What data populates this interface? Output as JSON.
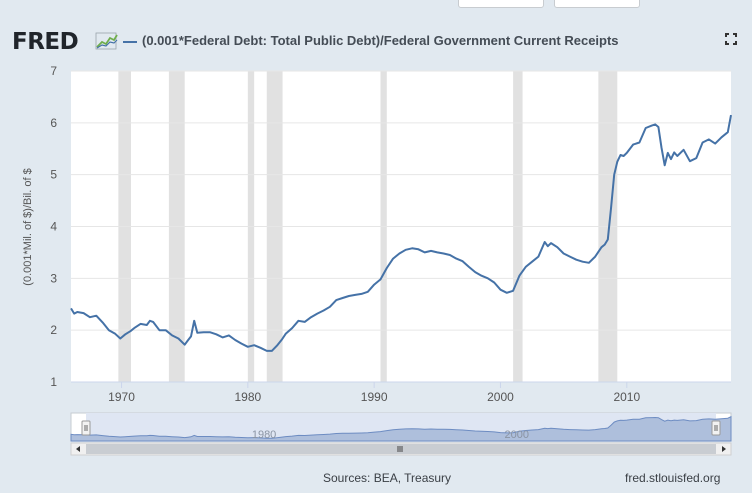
{
  "header": {
    "logo_text": "FRED",
    "series_title": "(0.001*Federal Debt: Total Public Debt)/Federal Government Current Receipts"
  },
  "footer": {
    "sources": "Sources: BEA, Treasury",
    "link": "fred.stlouisfed.org"
  },
  "icons": {
    "logo_spark": "chart-spark-icon",
    "fullscreen": "fullscreen-icon",
    "scroll_left": "arrow-left-icon",
    "scroll_right": "arrow-right-icon",
    "scroll_grip": "grip-icon"
  },
  "colors": {
    "series_line": "#4572a7",
    "recession": "#e1e1e1",
    "background": "#e1e9f0",
    "navigator_fill": "#aebfdc"
  },
  "navigator": {
    "labels": [
      "1980",
      "2000"
    ]
  },
  "chart_data": {
    "type": "line",
    "title": "(0.001*Federal Debt: Total Public Debt)/Federal Government Current Receipts",
    "ylabel": "(0.001*Mil. of $)/Bil. of $",
    "xlabel": "",
    "xlim": [
      1966.0,
      2018.25
    ],
    "ylim": [
      1,
      7
    ],
    "xticks": [
      1970,
      1980,
      1990,
      2000,
      2010
    ],
    "yticks": [
      1,
      2,
      3,
      4,
      5,
      6,
      7
    ],
    "grid": "horizontal",
    "legend": "top-left",
    "recessions": [
      [
        1969.75,
        1970.75
      ],
      [
        1973.75,
        1975.0
      ],
      [
        1980.0,
        1980.5
      ],
      [
        1981.5,
        1982.75
      ],
      [
        1990.5,
        1991.0
      ],
      [
        2001.0,
        2001.75
      ],
      [
        2007.75,
        2009.25
      ]
    ],
    "series": [
      {
        "x": [
          1966.0,
          1966.25,
          1966.5,
          1967.0,
          1967.5,
          1968.0,
          1968.5,
          1969.0,
          1969.5,
          1969.9,
          1970.3,
          1970.7,
          1971.0,
          1971.5,
          1972.0,
          1972.25,
          1972.5,
          1973.0,
          1973.5,
          1974.0,
          1974.5,
          1975.0,
          1975.25,
          1975.5,
          1975.75,
          1976.0,
          1976.5,
          1977.0,
          1977.5,
          1978.0,
          1978.5,
          1979.0,
          1979.5,
          1980.0,
          1980.5,
          1981.0,
          1981.5,
          1981.9,
          1982.3,
          1982.7,
          1983.0,
          1983.5,
          1984.0,
          1984.5,
          1985.0,
          1985.5,
          1986.0,
          1986.5,
          1987.0,
          1987.5,
          1988.0,
          1988.5,
          1989.0,
          1989.5,
          1990.0,
          1990.5,
          1991.0,
          1991.5,
          1992.0,
          1992.5,
          1993.0,
          1993.5,
          1994.0,
          1994.5,
          1995.0,
          1995.5,
          1996.0,
          1996.5,
          1997.0,
          1997.5,
          1998.0,
          1998.5,
          1999.0,
          1999.5,
          2000.0,
          2000.5,
          2001.0,
          2001.5,
          2002.0,
          2002.5,
          2003.0,
          2003.5,
          2003.75,
          2004.0,
          2004.5,
          2005.0,
          2005.5,
          2006.0,
          2006.5,
          2007.0,
          2007.5,
          2008.0,
          2008.25,
          2008.5,
          2008.75,
          2009.0,
          2009.25,
          2009.5,
          2009.75,
          2010.0,
          2010.5,
          2011.0,
          2011.5,
          2012.0,
          2012.25,
          2012.5,
          2012.75,
          2013.0,
          2013.25,
          2013.5,
          2013.75,
          2014.0,
          2014.5,
          2015.0,
          2015.5,
          2016.0,
          2016.5,
          2017.0,
          2017.5,
          2018.0,
          2018.25
        ],
        "values": [
          2.42,
          2.32,
          2.35,
          2.33,
          2.25,
          2.28,
          2.15,
          2.0,
          1.93,
          1.84,
          1.92,
          1.98,
          2.04,
          2.12,
          2.1,
          2.18,
          2.16,
          2.0,
          2.0,
          1.9,
          1.84,
          1.72,
          1.8,
          1.88,
          2.18,
          1.95,
          1.96,
          1.96,
          1.92,
          1.86,
          1.9,
          1.81,
          1.74,
          1.68,
          1.71,
          1.66,
          1.6,
          1.6,
          1.7,
          1.82,
          1.93,
          2.04,
          2.18,
          2.16,
          2.25,
          2.32,
          2.38,
          2.45,
          2.58,
          2.62,
          2.66,
          2.68,
          2.7,
          2.74,
          2.88,
          2.98,
          3.2,
          3.38,
          3.48,
          3.55,
          3.58,
          3.56,
          3.5,
          3.53,
          3.5,
          3.48,
          3.45,
          3.38,
          3.33,
          3.22,
          3.12,
          3.05,
          3.0,
          2.92,
          2.78,
          2.72,
          2.76,
          3.05,
          3.22,
          3.32,
          3.42,
          3.7,
          3.62,
          3.68,
          3.6,
          3.48,
          3.42,
          3.36,
          3.32,
          3.3,
          3.42,
          3.6,
          3.65,
          3.75,
          4.35,
          5.0,
          5.25,
          5.38,
          5.36,
          5.42,
          5.58,
          5.62,
          5.9,
          5.95,
          5.97,
          5.92,
          5.52,
          5.18,
          5.42,
          5.3,
          5.43,
          5.36,
          5.48,
          5.26,
          5.32,
          5.62,
          5.68,
          5.6,
          5.72,
          5.82,
          6.15
        ]
      }
    ],
    "navigator_xticks": [
      1980,
      2000
    ]
  }
}
